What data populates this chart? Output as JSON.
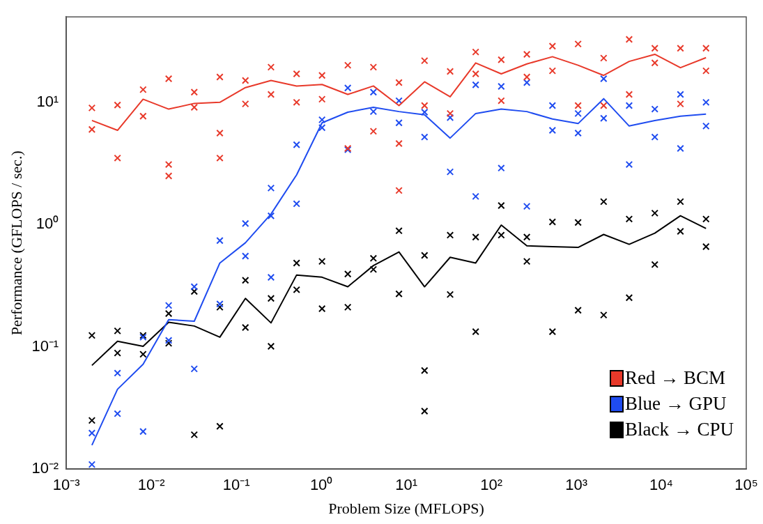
{
  "chart_data": {
    "type": "scatter",
    "xlabel": "Problem Size (MFLOPS)",
    "ylabel": "Performance (GFLOPS / sec.)",
    "log": "xy",
    "grid": false,
    "legend": "bottom right",
    "marker": "cross",
    "xlim": [
      0.001,
      100000
    ],
    "ylim": [
      0.01,
      50
    ],
    "xticks": [
      {
        "value": 0.001,
        "label": "10⁻³"
      },
      {
        "value": 0.01,
        "label": "10⁻²"
      },
      {
        "value": 0.1,
        "label": "10⁻¹"
      },
      {
        "value": 1,
        "label": "10⁰"
      },
      {
        "value": 10,
        "label": "10¹"
      },
      {
        "value": 100,
        "label": "10²"
      },
      {
        "value": 1000,
        "label": "10³"
      },
      {
        "value": 10000,
        "label": "10⁴"
      },
      {
        "value": 100000,
        "label": "10⁵"
      }
    ],
    "yticks": [
      {
        "value": 0.01,
        "label": "10⁻²"
      },
      {
        "value": 0.1,
        "label": "10⁻¹"
      },
      {
        "value": 1,
        "label": "10⁰"
      },
      {
        "value": 10,
        "label": "10¹"
      }
    ],
    "x": [
      0.002,
      0.004,
      0.008,
      0.016,
      0.032,
      0.064,
      0.128,
      0.256,
      0.512,
      1.02,
      2.05,
      4.1,
      8.2,
      16.4,
      32.8,
      65.5,
      131,
      262,
      524,
      1050,
      2100,
      4190,
      8390,
      16800,
      33600
    ],
    "series": [
      {
        "name": "Red → BCM",
        "color": "#e8392a",
        "x": [
          0.002,
          0.002,
          0.004,
          0.004,
          0.008,
          0.008,
          0.016,
          0.016,
          0.016,
          0.032,
          0.032,
          0.064,
          0.064,
          0.064,
          0.128,
          0.128,
          0.256,
          0.256,
          0.512,
          0.512,
          1.02,
          1.02,
          2.05,
          2.05,
          4.1,
          4.1,
          8.2,
          8.2,
          8.2,
          16.4,
          16.4,
          32.8,
          32.8,
          65.5,
          65.5,
          131,
          131,
          262,
          262,
          524,
          524,
          1050,
          1050,
          2100,
          2100,
          4190,
          4190,
          8390,
          8390,
          16800,
          16800,
          33600,
          33600
        ],
        "values": [
          9.0,
          6.0,
          9.5,
          3.5,
          12.7,
          7.7,
          15.6,
          3.1,
          2.5,
          12.1,
          9.1,
          16.1,
          5.6,
          3.5,
          15.1,
          9.7,
          19.4,
          11.6,
          17.1,
          10.0,
          16.6,
          10.6,
          20.1,
          4.2,
          19.4,
          5.8,
          14.5,
          4.6,
          1.9,
          21.9,
          9.4,
          17.9,
          8.1,
          25.8,
          17.1,
          22.3,
          10.3,
          24.7,
          16.1,
          28.8,
          18.1,
          30.0,
          9.4,
          23.0,
          9.4,
          32.7,
          11.6,
          27.7,
          21.0,
          27.7,
          9.7,
          27.7,
          18.1
        ]
      },
      {
        "name": "Blue → GPU",
        "color": "#1f4cf0",
        "x": [
          0.002,
          0.002,
          0.004,
          0.004,
          0.008,
          0.008,
          0.016,
          0.016,
          0.032,
          0.032,
          0.064,
          0.064,
          0.128,
          0.128,
          0.256,
          0.256,
          0.256,
          0.512,
          0.512,
          1.02,
          1.02,
          2.05,
          2.05,
          4.1,
          4.1,
          8.2,
          8.2,
          16.4,
          16.4,
          32.8,
          32.8,
          65.5,
          65.5,
          131,
          131,
          262,
          262,
          524,
          524,
          1050,
          1050,
          2100,
          2100,
          4190,
          4190,
          8390,
          8390,
          16800,
          16800,
          33600,
          33600
        ],
        "values": [
          0.0197,
          0.0109,
          0.061,
          0.0284,
          0.12,
          0.0203,
          0.218,
          0.113,
          0.31,
          0.066,
          0.74,
          0.224,
          1.02,
          0.552,
          1.99,
          1.18,
          0.37,
          4.5,
          1.48,
          7.2,
          6.2,
          13.1,
          4.1,
          12.1,
          8.4,
          10.3,
          6.8,
          8.3,
          5.2,
          7.5,
          2.7,
          13.9,
          1.7,
          13.5,
          2.9,
          14.5,
          1.41,
          9.4,
          5.9,
          8.1,
          5.6,
          15.6,
          7.4,
          9.4,
          3.1,
          8.8,
          5.2,
          11.6,
          4.2,
          10.0,
          6.4
        ]
      },
      {
        "name": "Black → CPU",
        "color": "#000000",
        "x": [
          0.002,
          0.002,
          0.004,
          0.004,
          0.008,
          0.008,
          0.016,
          0.016,
          0.032,
          0.032,
          0.064,
          0.064,
          0.128,
          0.128,
          0.256,
          0.256,
          0.512,
          0.512,
          1.02,
          1.02,
          2.05,
          2.05,
          4.1,
          4.1,
          8.2,
          8.2,
          16.4,
          16.4,
          16.4,
          32.8,
          32.8,
          65.5,
          65.5,
          131,
          131,
          262,
          262,
          524,
          524,
          1050,
          1050,
          2100,
          2100,
          4190,
          4190,
          8390,
          8390,
          16800,
          16800,
          33600,
          33600
        ],
        "values": [
          0.124,
          0.025,
          0.135,
          0.089,
          0.124,
          0.087,
          0.187,
          0.107,
          0.284,
          0.0191,
          0.211,
          0.0224,
          0.35,
          0.144,
          0.249,
          0.101,
          0.485,
          0.293,
          0.5,
          0.205,
          0.394,
          0.211,
          0.53,
          0.43,
          0.89,
          0.271,
          0.56,
          0.064,
          0.0298,
          0.82,
          0.268,
          0.79,
          0.133,
          1.43,
          0.82,
          0.79,
          0.5,
          1.05,
          0.133,
          1.04,
          0.199,
          1.54,
          0.182,
          1.11,
          0.252,
          1.24,
          0.471,
          1.54,
          0.88,
          1.11,
          0.66
        ]
      },
      {
        "type": "line",
        "marker": "none",
        "color": "#e8392a",
        "values": [
          7.1,
          5.9,
          10.6,
          8.8,
          9.8,
          10.0,
          13.2,
          15.1,
          13.6,
          14.0,
          11.6,
          13.6,
          9.4,
          14.7,
          11.1,
          21.0,
          17.1,
          20.6,
          23.6,
          20.1,
          16.6,
          21.6,
          24.7,
          19.2,
          23.2
        ]
      },
      {
        "type": "line",
        "marker": "none",
        "color": "#1f4cf0",
        "values": [
          0.0157,
          0.045,
          0.072,
          0.167,
          0.162,
          0.485,
          0.71,
          1.22,
          2.55,
          6.8,
          8.3,
          9.1,
          8.4,
          7.9,
          5.1,
          8.1,
          8.8,
          8.4,
          7.3,
          6.7,
          10.7,
          6.4,
          7.1,
          7.7,
          8.0
        ]
      },
      {
        "type": "line",
        "marker": "none",
        "color": "#000000",
        "values": [
          0.0705,
          0.111,
          0.101,
          0.159,
          0.148,
          0.12,
          0.249,
          0.157,
          0.387,
          0.371,
          0.31,
          0.462,
          0.597,
          0.31,
          0.54,
          0.485,
          0.99,
          0.67,
          0.66,
          0.65,
          0.83,
          0.69,
          0.85,
          1.18,
          0.93
        ]
      }
    ]
  }
}
